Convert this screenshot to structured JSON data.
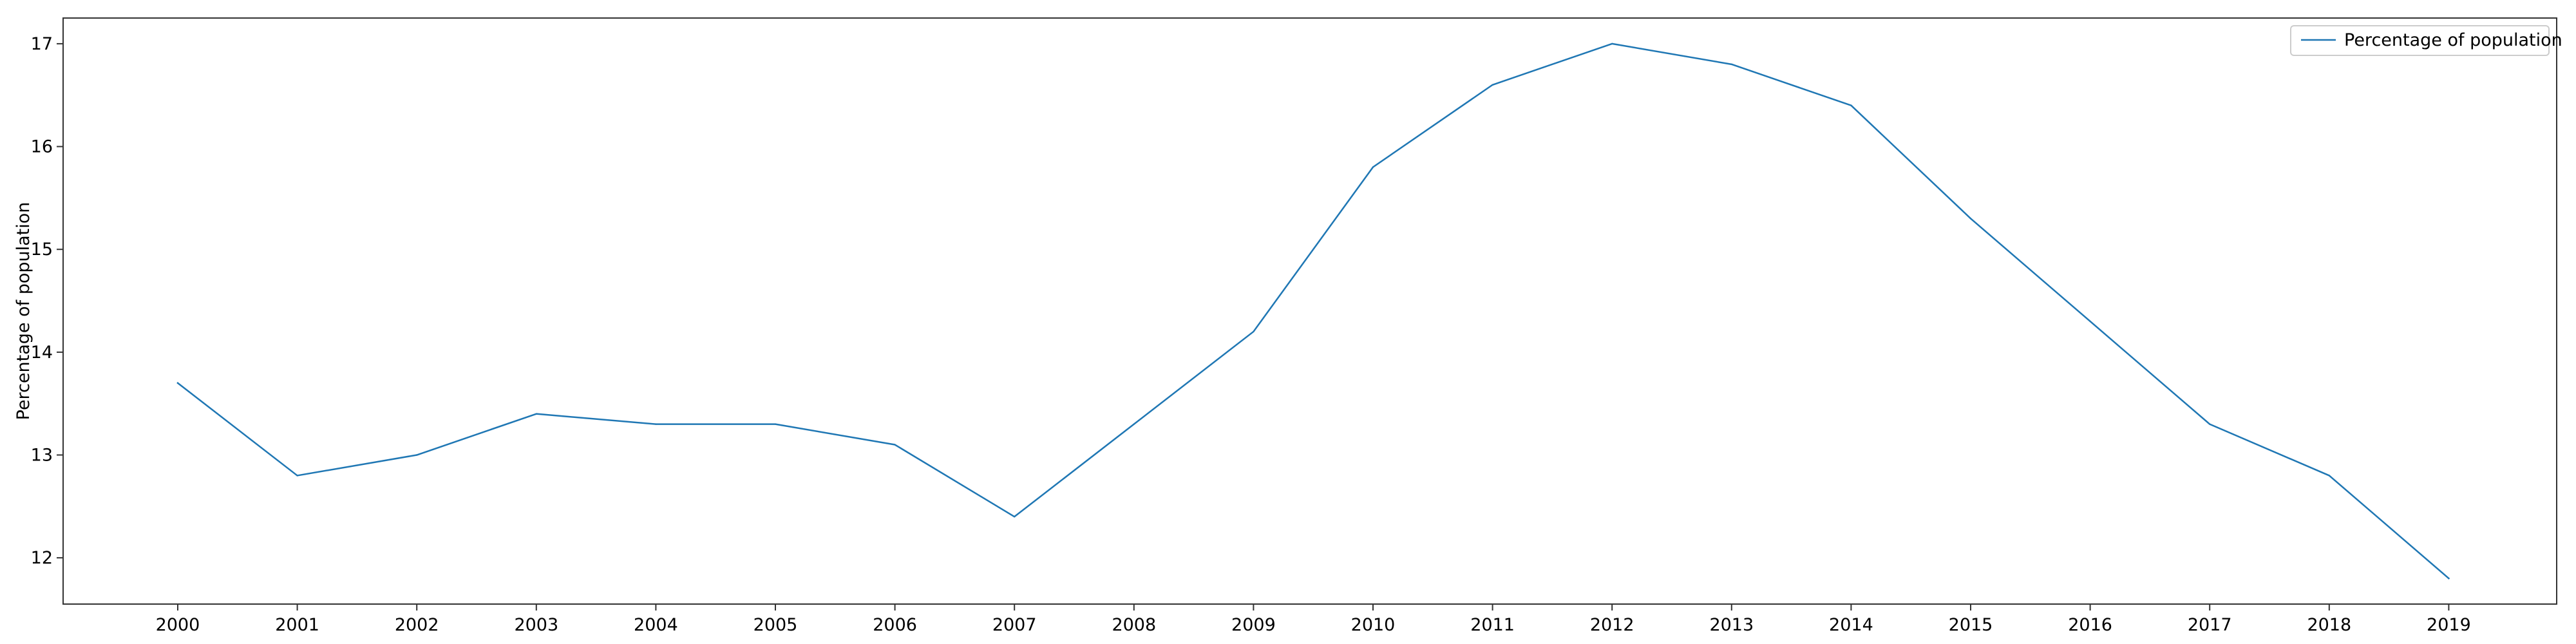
{
  "chart_data": {
    "type": "line",
    "title": "",
    "xlabel": "",
    "ylabel": "Percentage of population",
    "categories": [
      "2000",
      "2001",
      "2002",
      "2003",
      "2004",
      "2005",
      "2006",
      "2007",
      "2008",
      "2009",
      "2010",
      "2011",
      "2012",
      "2013",
      "2014",
      "2015",
      "2016",
      "2017",
      "2018",
      "2019"
    ],
    "x_ticks": [
      "2000",
      "2001",
      "2002",
      "2003",
      "2004",
      "2005",
      "2006",
      "2007",
      "2008",
      "2009",
      "2010",
      "2011",
      "2012",
      "2013",
      "2014",
      "2015",
      "2016",
      "2017",
      "2018",
      "2019"
    ],
    "y_ticks": [
      "12",
      "13",
      "14",
      "15",
      "16",
      "17"
    ],
    "ylim": [
      11.55,
      17.25
    ],
    "grid": false,
    "legend_position": "top-right",
    "series": [
      {
        "name": "Percentage of population",
        "color": "#1f77b4",
        "values": [
          13.7,
          12.8,
          13.0,
          13.4,
          13.3,
          13.3,
          13.1,
          12.4,
          13.3,
          14.2,
          15.8,
          16.6,
          17.0,
          16.8,
          16.4,
          15.3,
          14.3,
          13.3,
          12.8,
          11.8
        ]
      }
    ]
  }
}
